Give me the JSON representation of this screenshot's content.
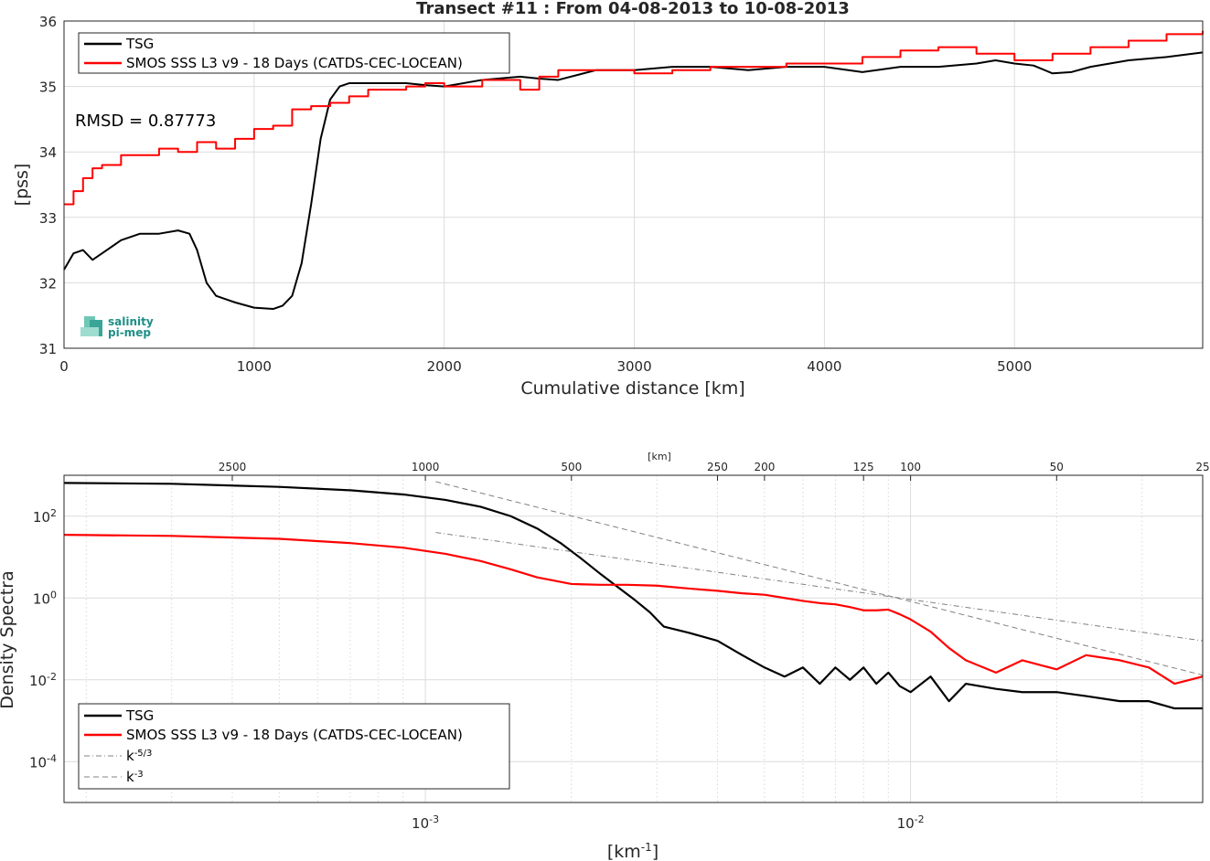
{
  "chart_data": [
    {
      "type": "line",
      "title": "Transect #11 : From 04-08-2013 to 10-08-2013",
      "xlabel": "Cumulative distance [km]",
      "ylabel": "[pss]",
      "xlim": [
        0,
        5990
      ],
      "ylim": [
        31,
        36
      ],
      "xticks": [
        0,
        1000,
        2000,
        3000,
        4000,
        5000
      ],
      "yticks": [
        31,
        32,
        33,
        34,
        35,
        36
      ],
      "grid": true,
      "legend": "top-left",
      "annotation": "RMSD = 0.87773",
      "logo_text": [
        "salinity",
        "pi-mep"
      ],
      "series": [
        {
          "name": "TSG",
          "color": "#000000",
          "x": [
            0,
            50,
            100,
            150,
            200,
            300,
            400,
            500,
            600,
            660,
            700,
            750,
            800,
            900,
            1000,
            1100,
            1150,
            1200,
            1250,
            1300,
            1350,
            1400,
            1450,
            1500,
            1600,
            1700,
            1800,
            1900,
            2000,
            2200,
            2400,
            2500,
            2600,
            2800,
            3000,
            3200,
            3400,
            3600,
            3800,
            4000,
            4200,
            4400,
            4600,
            4800,
            4900,
            5000,
            5100,
            5200,
            5300,
            5400,
            5600,
            5800,
            5990
          ],
          "y": [
            32.2,
            32.45,
            32.5,
            32.35,
            32.45,
            32.65,
            32.75,
            32.75,
            32.8,
            32.75,
            32.5,
            32.0,
            31.8,
            31.7,
            31.62,
            31.6,
            31.65,
            31.8,
            32.3,
            33.2,
            34.2,
            34.8,
            35.0,
            35.05,
            35.05,
            35.05,
            35.05,
            35.02,
            35.0,
            35.1,
            35.15,
            35.12,
            35.1,
            35.25,
            35.25,
            35.3,
            35.3,
            35.25,
            35.3,
            35.3,
            35.22,
            35.3,
            35.3,
            35.35,
            35.4,
            35.35,
            35.32,
            35.2,
            35.22,
            35.3,
            35.4,
            35.45,
            35.52
          ]
        },
        {
          "name": "SMOS SSS L3 v9 - 18 Days (CATDS-CEC-LOCEAN)",
          "color": "#ff0000",
          "x": [
            0,
            50,
            100,
            150,
            200,
            300,
            400,
            500,
            600,
            700,
            800,
            900,
            1000,
            1100,
            1200,
            1300,
            1400,
            1500,
            1600,
            1700,
            1800,
            1900,
            2000,
            2200,
            2400,
            2500,
            2600,
            2800,
            3000,
            3200,
            3400,
            3600,
            3800,
            4000,
            4200,
            4400,
            4600,
            4800,
            5000,
            5200,
            5400,
            5600,
            5800,
            5990
          ],
          "y": [
            33.2,
            33.4,
            33.6,
            33.75,
            33.8,
            33.95,
            33.95,
            34.05,
            34.0,
            34.15,
            34.05,
            34.2,
            34.35,
            34.4,
            34.65,
            34.7,
            34.75,
            34.85,
            34.95,
            34.95,
            35.0,
            35.05,
            35.0,
            35.1,
            34.95,
            35.15,
            35.25,
            35.25,
            35.2,
            35.25,
            35.3,
            35.3,
            35.35,
            35.35,
            35.45,
            35.55,
            35.6,
            35.5,
            35.4,
            35.5,
            35.6,
            35.7,
            35.8,
            35.85
          ]
        }
      ]
    },
    {
      "type": "line",
      "scale": "log-log",
      "xlabel": "[km-1]",
      "ylabel": "Density Spectra",
      "top_axis_label": "[km]",
      "top_ticks": [
        2500,
        1000,
        500,
        250,
        200,
        125,
        100,
        50,
        25
      ],
      "xlim": [
        0.00018,
        0.04
      ],
      "ylim": [
        1e-05,
        1000
      ],
      "xticks": [
        "10-3",
        "10-2"
      ],
      "yticks": [
        "10-4",
        "10-2",
        "100",
        "102"
      ],
      "grid": true,
      "legend": "bottom-left",
      "series": [
        {
          "name": "TSG",
          "color": "#000000",
          "x": [
            0.00018,
            0.0003,
            0.0005,
            0.0007,
            0.0009,
            0.0011,
            0.0013,
            0.0015,
            0.0017,
            0.0019,
            0.0021,
            0.0023,
            0.0025,
            0.0027,
            0.0029,
            0.0031,
            0.0035,
            0.004,
            0.0045,
            0.005,
            0.0055,
            0.006,
            0.0065,
            0.007,
            0.0075,
            0.008,
            0.0085,
            0.009,
            0.0095,
            0.01,
            0.011,
            0.012,
            0.013,
            0.015,
            0.017,
            0.02,
            0.023,
            0.027,
            0.031,
            0.035,
            0.04
          ],
          "y": [
            650,
            620,
            520,
            430,
            340,
            250,
            170,
            100,
            50,
            22,
            9,
            3.8,
            1.8,
            0.9,
            0.45,
            0.2,
            0.14,
            0.09,
            0.04,
            0.02,
            0.012,
            0.02,
            0.008,
            0.02,
            0.01,
            0.02,
            0.008,
            0.015,
            0.007,
            0.005,
            0.012,
            0.003,
            0.008,
            0.006,
            0.005,
            0.005,
            0.004,
            0.003,
            0.003,
            0.002,
            0.002
          ]
        },
        {
          "name": "SMOS SSS L3 v9 - 18 Days (CATDS-CEC-LOCEAN)",
          "color": "#ff0000",
          "x": [
            0.00018,
            0.0003,
            0.0005,
            0.0007,
            0.0009,
            0.0011,
            0.0013,
            0.0015,
            0.0017,
            0.002,
            0.0023,
            0.0026,
            0.003,
            0.0035,
            0.004,
            0.0045,
            0.005,
            0.0055,
            0.006,
            0.0065,
            0.007,
            0.0075,
            0.008,
            0.0085,
            0.009,
            0.0095,
            0.01,
            0.011,
            0.012,
            0.013,
            0.015,
            0.017,
            0.02,
            0.023,
            0.027,
            0.031,
            0.035,
            0.04
          ],
          "y": [
            35,
            33,
            28,
            22,
            17,
            12,
            8,
            5,
            3.2,
            2.2,
            2.1,
            2.1,
            2.0,
            1.7,
            1.5,
            1.3,
            1.2,
            1.0,
            0.85,
            0.75,
            0.7,
            0.6,
            0.5,
            0.5,
            0.52,
            0.4,
            0.3,
            0.15,
            0.06,
            0.03,
            0.015,
            0.03,
            0.018,
            0.04,
            0.03,
            0.02,
            0.008,
            0.012
          ]
        },
        {
          "name": "k-5/3",
          "color": "#808080",
          "style": "dashdot",
          "x": [
            0.00105,
            0.04
          ],
          "y": [
            40,
            0.09
          ]
        },
        {
          "name": "k-3",
          "color": "#808080",
          "style": "dashed",
          "x": [
            0.00105,
            0.04
          ],
          "y": [
            700,
            0.013
          ]
        }
      ]
    }
  ]
}
